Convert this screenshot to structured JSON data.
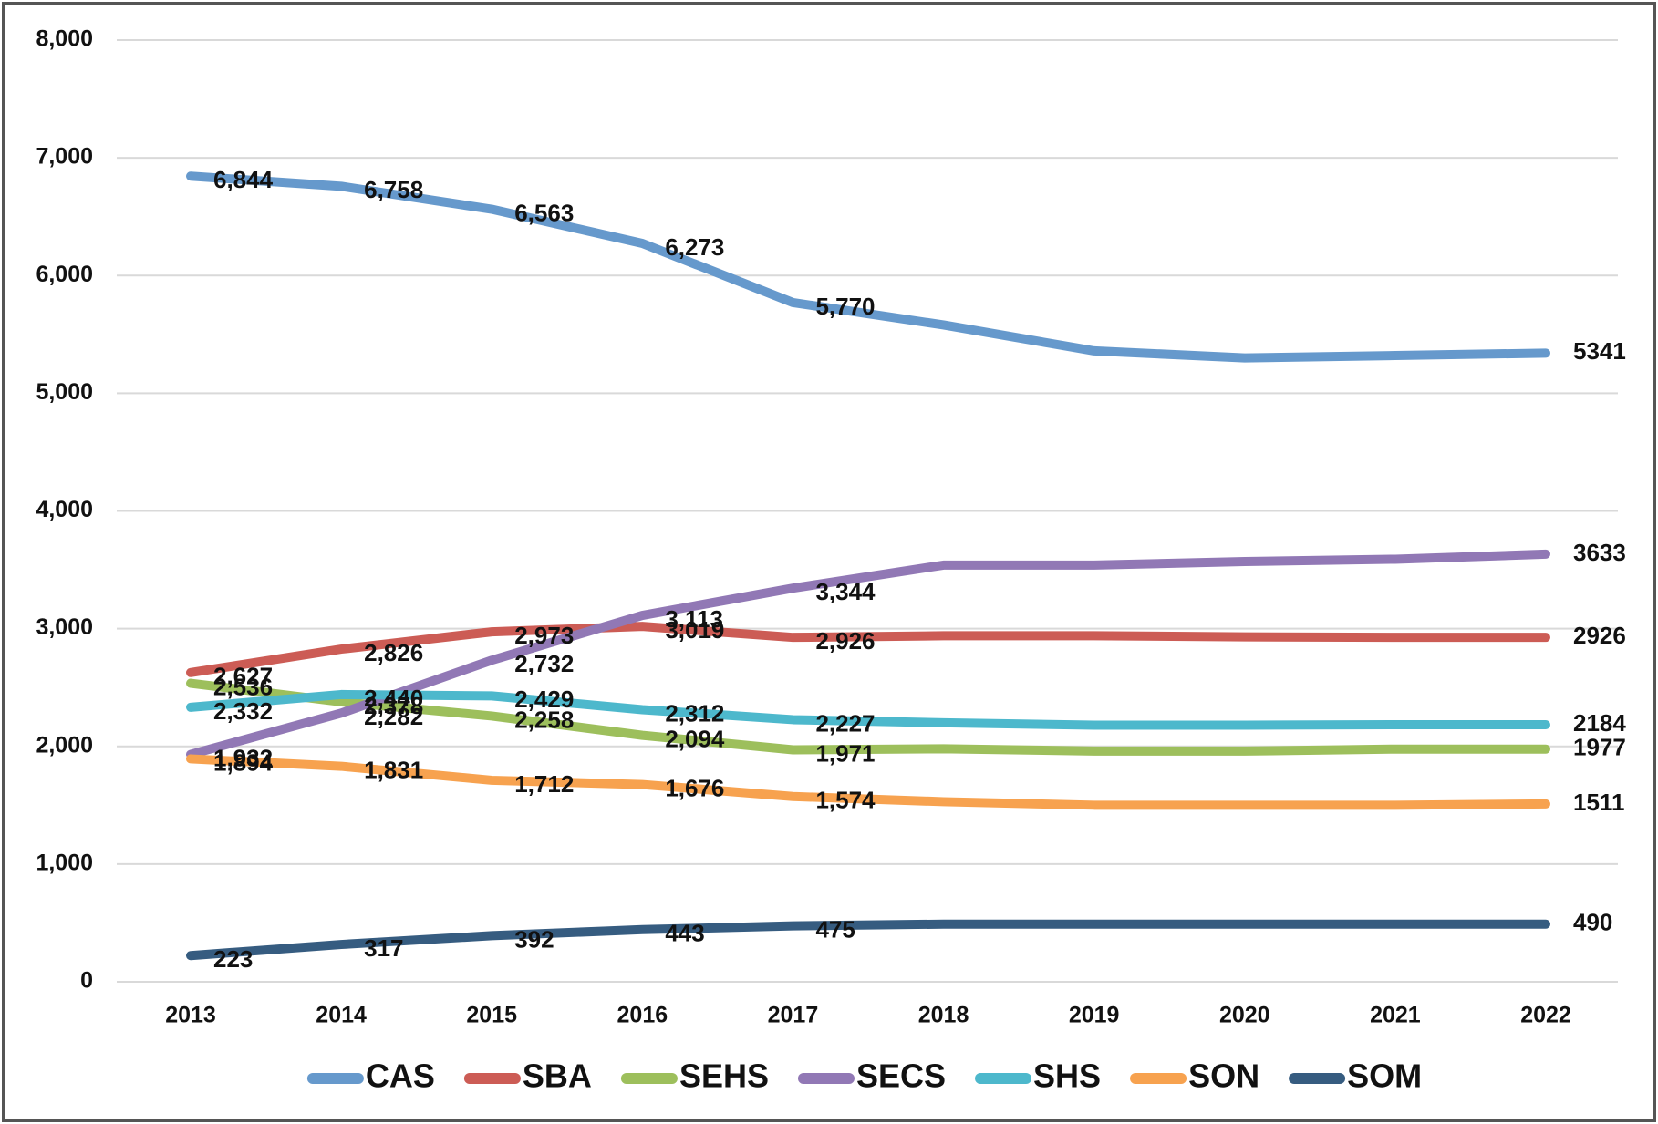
{
  "chart_data": {
    "type": "line",
    "categories": [
      "2013",
      "2014",
      "2015",
      "2016",
      "2017",
      "2018",
      "2019",
      "2020",
      "2021",
      "2022"
    ],
    "ylim": [
      0,
      8000
    ],
    "yticks": [
      0,
      {
        "value": 1000,
        "label": "1,000"
      },
      {
        "value": 2000,
        "label": "2,000"
      },
      {
        "value": 3000,
        "label": "3,000"
      },
      {
        "value": 4000,
        "label": "4,000"
      },
      {
        "value": 5000,
        "label": "5,000"
      },
      {
        "value": 6000,
        "label": "6,000"
      },
      {
        "value": 7000,
        "label": "7,000"
      },
      {
        "value": 8000,
        "label": "8,000"
      }
    ],
    "grid": true,
    "legend": "bottom",
    "series": [
      {
        "name": "CAS",
        "color": "#6699cc",
        "values": [
          6844,
          6758,
          6563,
          6273,
          5770,
          5580,
          5360,
          5300,
          5320,
          5341
        ],
        "value_labels": [
          "6,844",
          "6,758",
          "6,563",
          "6,273",
          "5,770",
          null,
          null,
          null,
          null,
          "5341"
        ]
      },
      {
        "name": "SBA",
        "color": "#cc5c55",
        "values": [
          2627,
          2826,
          2973,
          3019,
          2926,
          2940,
          2940,
          2930,
          2926,
          2926
        ],
        "value_labels": [
          "2,627",
          "2,826",
          "2,973",
          "3,019",
          "2,926",
          null,
          null,
          null,
          null,
          "2926"
        ]
      },
      {
        "name": "SEHS",
        "color": "#9dbf5c",
        "values": [
          2536,
          2378,
          2258,
          2094,
          1971,
          1980,
          1960,
          1960,
          1977,
          1977
        ],
        "value_labels": [
          "2,536",
          "2,378",
          "2,258",
          "2,094",
          "1,971",
          null,
          null,
          null,
          null,
          "1977"
        ]
      },
      {
        "name": "SECS",
        "color": "#9178b5",
        "values": [
          1932,
          2282,
          2732,
          3113,
          3344,
          3540,
          3540,
          3570,
          3590,
          3633
        ],
        "value_labels": [
          "1,932",
          "2,282",
          "2,732",
          "3,113",
          "3,344",
          null,
          null,
          null,
          null,
          "3633"
        ]
      },
      {
        "name": "SHS",
        "color": "#4db8cc",
        "values": [
          2332,
          2440,
          2429,
          2312,
          2227,
          2200,
          2180,
          2180,
          2184,
          2184
        ],
        "value_labels": [
          "2,332",
          "2,440",
          "2,429",
          "2,312",
          "2,227",
          null,
          null,
          null,
          null,
          "2184"
        ]
      },
      {
        "name": "SON",
        "color": "#f7a24f",
        "values": [
          1894,
          1831,
          1712,
          1676,
          1574,
          1530,
          1500,
          1500,
          1500,
          1511
        ],
        "value_labels": [
          "1,894",
          "1,831",
          "1,712",
          "1,676",
          "1,574",
          null,
          null,
          null,
          null,
          "1511"
        ]
      },
      {
        "name": "SOM",
        "color": "#365c80",
        "values": [
          223,
          317,
          392,
          443,
          475,
          490,
          490,
          490,
          490,
          490
        ],
        "value_labels": [
          "223",
          "317",
          "392",
          "443",
          "475",
          null,
          null,
          null,
          null,
          "490"
        ]
      }
    ]
  }
}
